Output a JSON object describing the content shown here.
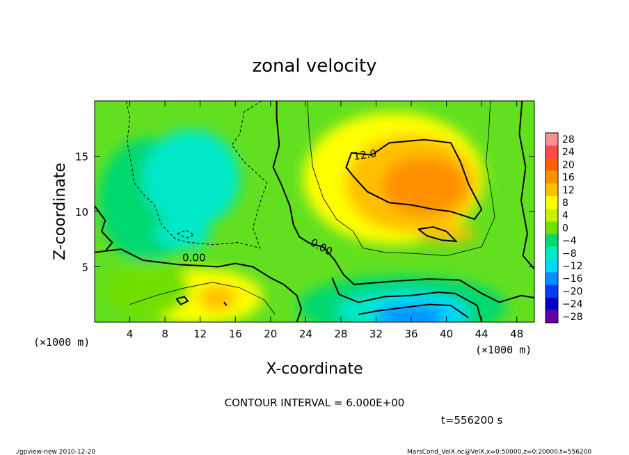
{
  "chart_data": {
    "type": "heatmap",
    "title": "zonal velocity",
    "xlabel": "X-coordinate",
    "ylabel": "Z-coordinate",
    "x_unit": "(×1000 m)",
    "y_unit": "(×1000 m)",
    "xlim": [
      0,
      50
    ],
    "ylim": [
      0,
      20
    ],
    "xticks": [
      4,
      8,
      12,
      16,
      20,
      24,
      28,
      32,
      36,
      40,
      44,
      48
    ],
    "yticks": [
      5,
      10,
      15
    ],
    "colorbar": {
      "levels": [
        28,
        24,
        20,
        16,
        12,
        8,
        4,
        0,
        -4,
        -8,
        -12,
        -16,
        -20,
        -24,
        -28
      ],
      "labels": [
        "28",
        "24",
        "20",
        "16",
        "12",
        "8",
        "4",
        "0",
        "−4",
        "−8",
        "−12",
        "−16",
        "−20",
        "−24",
        "−28"
      ],
      "colors": [
        "#ff9090",
        "#ff4a4a",
        "#ff6000",
        "#ff9000",
        "#ffc000",
        "#ffff00",
        "#c8f000",
        "#70e000",
        "#00d870",
        "#00e8c8",
        "#00d8ff",
        "#0090ff",
        "#0040f0",
        "#0000c0",
        "#6000a8"
      ]
    },
    "contour_interval": "6.000E+00",
    "contour_labels": [
      "12.0",
      "0.00",
      "0.00"
    ],
    "field_features": [
      {
        "kind": "max",
        "x": 37,
        "z": 12.5,
        "value": 16
      },
      {
        "kind": "max",
        "x": 12,
        "z": 2.5,
        "value": 9
      },
      {
        "kind": "min",
        "x": 35,
        "z": 1.2,
        "value": -18
      },
      {
        "kind": "min",
        "x": 10,
        "z": 12.5,
        "value": -7
      }
    ]
  },
  "footer": {
    "contour_text": "CONTOUR INTERVAL = 6.000E+00",
    "time_text": "t=556200 s",
    "left_credit": "./gpview-new  2010-12-20",
    "right_credit": "MarsCond_VelX.nc@VelX,x=0:50000,z=0:20000,t=556200"
  }
}
